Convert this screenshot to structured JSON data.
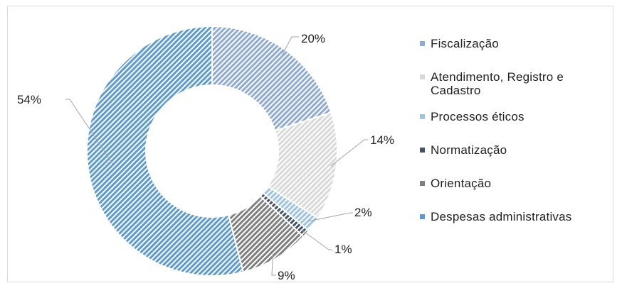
{
  "chart_data": {
    "type": "pie",
    "subtype": "donut",
    "categories": [
      "Fiscalização",
      "Atendimento, Registro e Cadastro",
      "Processos éticos",
      "Normatização",
      "Orientação",
      "Despesas administrativas"
    ],
    "values": [
      20,
      14,
      2,
      1,
      9,
      54
    ],
    "labels": [
      "20%",
      "14%",
      "2%",
      "1%",
      "9%",
      "54%"
    ],
    "colors": [
      "#8eaadb",
      "#d9d9d9",
      "#9dc3e6",
      "#44546a",
      "#7f7f7f",
      "#5b9bd5"
    ],
    "pattern": "diagonal-hatch",
    "legend_position": "right",
    "title": ""
  }
}
